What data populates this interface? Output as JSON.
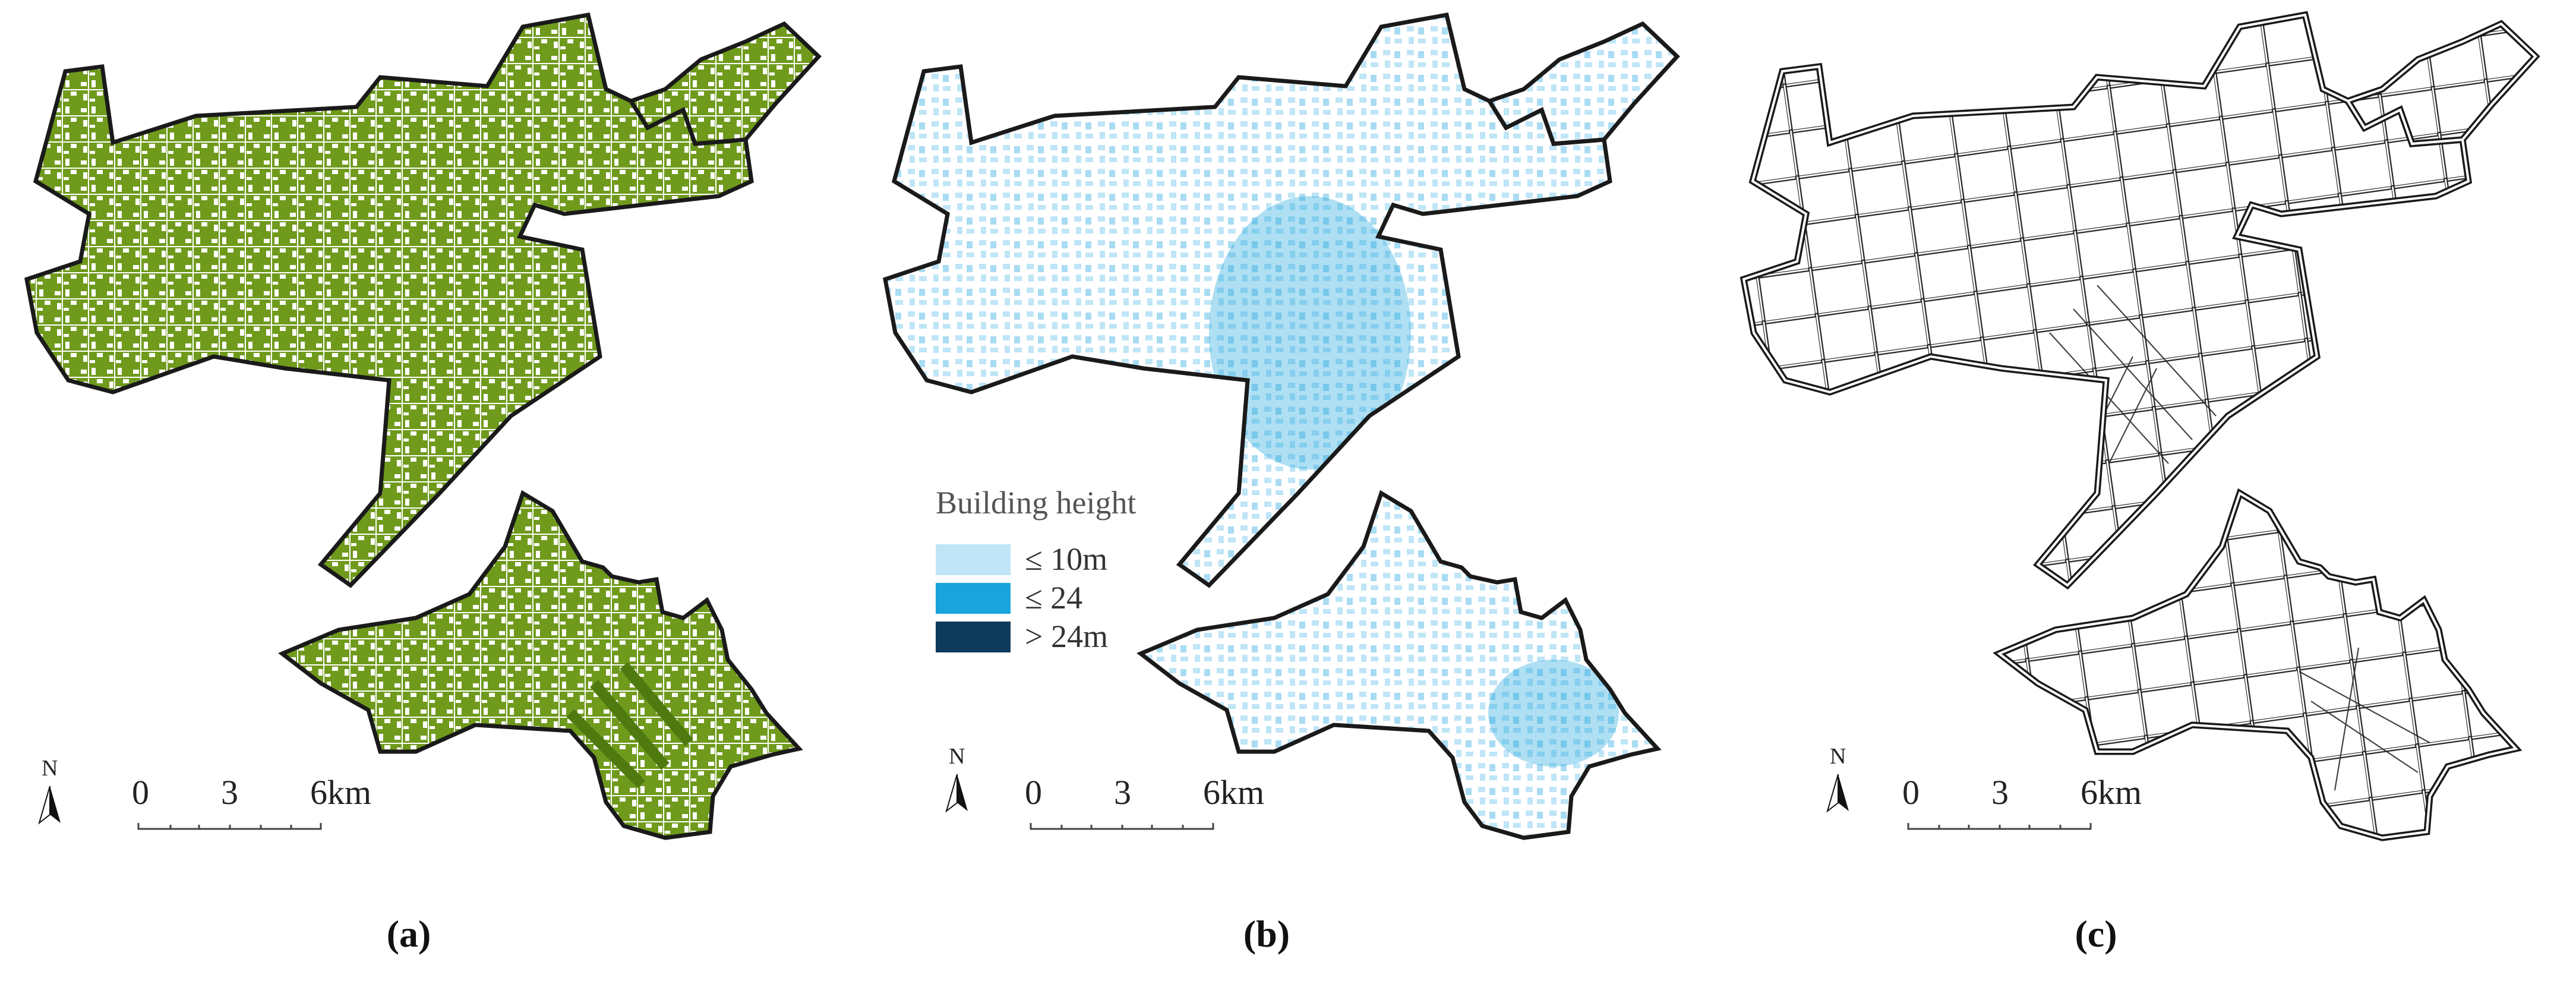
{
  "panels": [
    {
      "id": "a",
      "caption": "(a)"
    },
    {
      "id": "b",
      "caption": "(b)"
    },
    {
      "id": "c",
      "caption": "(c)"
    }
  ],
  "scale_bar": {
    "ticks": [
      "0",
      "3",
      "6km"
    ]
  },
  "north_arrow": {
    "label": "N",
    "icon": "north-arrow-icon"
  },
  "legend": {
    "title": "Building height",
    "items": [
      {
        "label": "≤ 10m",
        "color": "#bfe5f7"
      },
      {
        "label": "≤ 24",
        "color": "#1aa3dc"
      },
      {
        "label": "> 24m",
        "color": "#0e3a5c"
      }
    ]
  },
  "colors": {
    "outline": "#1a1a1a",
    "vegetation": "#6f9a1c",
    "building_light": "#bfe5f7",
    "road": "#222222"
  }
}
